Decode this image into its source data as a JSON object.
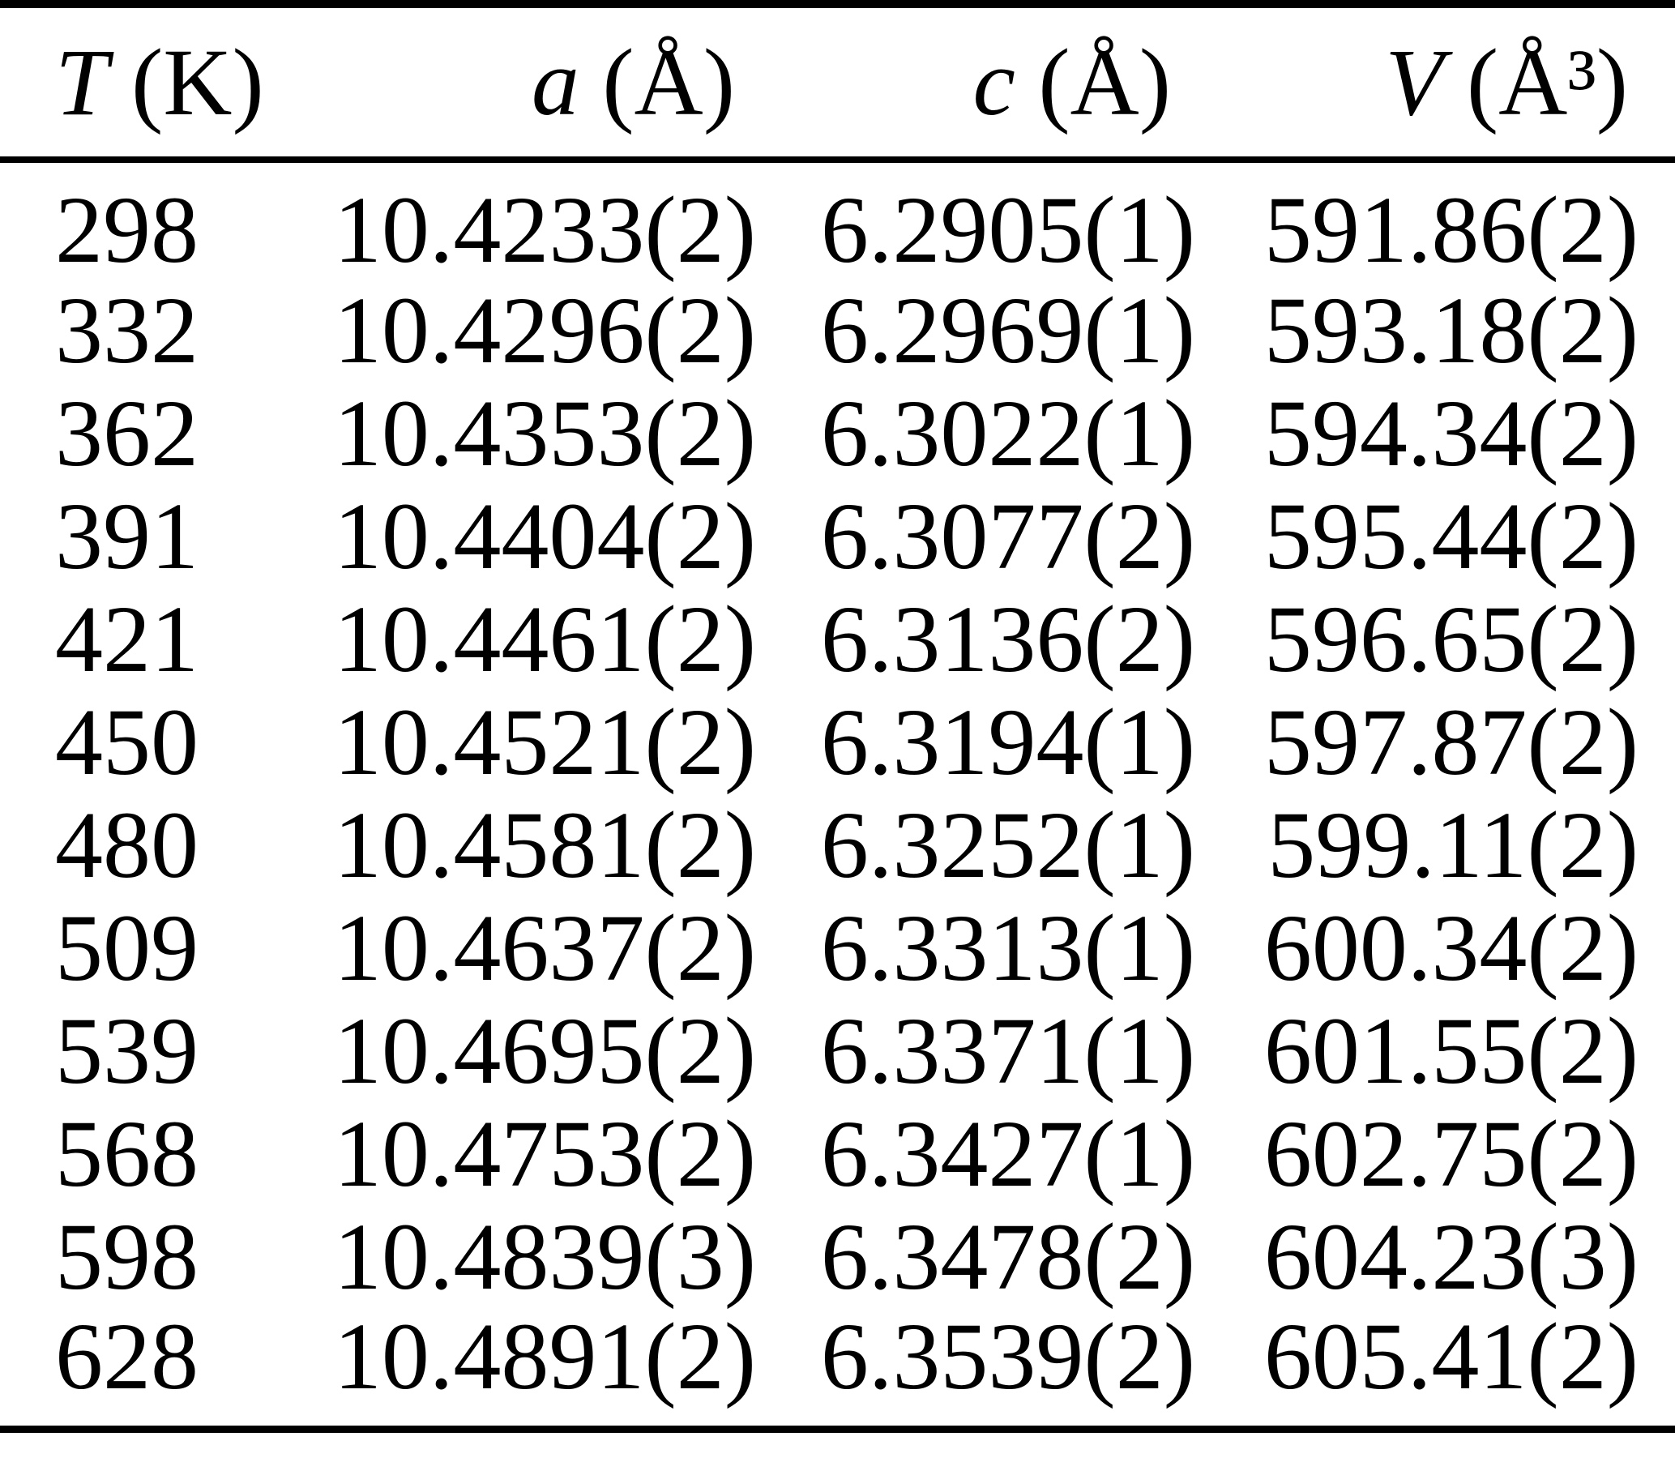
{
  "table": {
    "headers": {
      "temperature": {
        "symbol": "T",
        "unit": "(K)"
      },
      "a_param": {
        "symbol": "a",
        "unit": "(Å)"
      },
      "c_param": {
        "symbol": "c",
        "unit": "(Å)"
      },
      "volume": {
        "symbol": "V",
        "unit": "(Å³)"
      }
    },
    "rows": [
      {
        "T": "298",
        "a": "10.4233(2)",
        "c": "6.2905(1)",
        "V": "591.86(2)"
      },
      {
        "T": "332",
        "a": "10.4296(2)",
        "c": "6.2969(1)",
        "V": "593.18(2)"
      },
      {
        "T": "362",
        "a": "10.4353(2)",
        "c": "6.3022(1)",
        "V": "594.34(2)"
      },
      {
        "T": "391",
        "a": "10.4404(2)",
        "c": "6.3077(2)",
        "V": "595.44(2)"
      },
      {
        "T": "421",
        "a": "10.4461(2)",
        "c": "6.3136(2)",
        "V": "596.65(2)"
      },
      {
        "T": "450",
        "a": "10.4521(2)",
        "c": "6.3194(1)",
        "V": "597.87(2)"
      },
      {
        "T": "480",
        "a": "10.4581(2)",
        "c": "6.3252(1)",
        "V": "599.11(2)"
      },
      {
        "T": "509",
        "a": "10.4637(2)",
        "c": "6.3313(1)",
        "V": "600.34(2)"
      },
      {
        "T": "539",
        "a": "10.4695(2)",
        "c": "6.3371(1)",
        "V": "601.55(2)"
      },
      {
        "T": "568",
        "a": "10.4753(2)",
        "c": "6.3427(1)",
        "V": "602.75(2)"
      },
      {
        "T": "598",
        "a": "10.4839(3)",
        "c": "6.3478(2)",
        "V": "604.23(3)"
      },
      {
        "T": "628",
        "a": "10.4891(2)",
        "c": "6.3539(2)",
        "V": "605.41(2)"
      }
    ],
    "colors": {
      "text": "#000000",
      "background": "#ffffff",
      "rule": "#000000"
    }
  }
}
